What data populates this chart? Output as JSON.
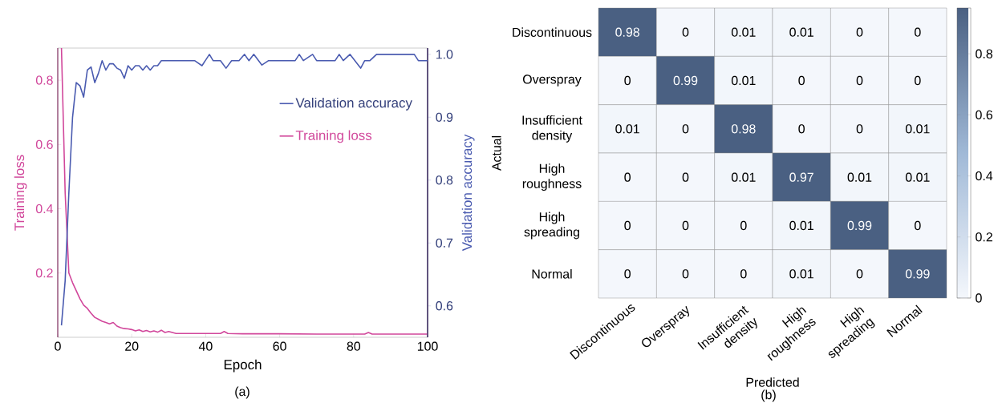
{
  "chart_data": [
    {
      "type": "line",
      "xlabel": "Epoch",
      "ylabel": "Training loss",
      "y2label": "Validation accuracy",
      "xlim": [
        0,
        100
      ],
      "xticks": [
        0,
        20,
        40,
        60,
        80,
        100
      ],
      "ylim": [
        0,
        0.9
      ],
      "yticks": [
        0.2,
        0.4,
        0.6,
        0.8
      ],
      "y2lim": [
        0.55,
        1.01
      ],
      "y2ticks": [
        0.6,
        0.7,
        0.8,
        0.9,
        {
          "value": 1.0,
          "label": "1.0"
        }
      ],
      "legend": "top right",
      "grid": false,
      "annotations": [
        "(a)"
      ],
      "series": [
        {
          "name": "Validation accuracy",
          "color": "#4a5bb0",
          "axis": "y2",
          "x": [
            1,
            2,
            3,
            4,
            5,
            6,
            7,
            8,
            9,
            10,
            11,
            12,
            13,
            14,
            15,
            16,
            17,
            18,
            19,
            20,
            21,
            22,
            23,
            24,
            25,
            26,
            27,
            28,
            37,
            39,
            41,
            42,
            44,
            45.5,
            47,
            49,
            50.5,
            51.7,
            53,
            55.2,
            57,
            64.2,
            65.3,
            66.4,
            68.9,
            70,
            75,
            76.1,
            77.2,
            79,
            81.9,
            83,
            84.4,
            86.2,
            96.4,
            97.5,
            100
          ],
          "values": [
            0.569,
            0.64,
            0.78,
            0.9,
            0.955,
            0.95,
            0.932,
            0.975,
            0.98,
            0.955,
            0.97,
            0.99,
            0.975,
            0.985,
            0.985,
            0.978,
            0.975,
            0.962,
            0.982,
            0.975,
            0.982,
            0.982,
            0.975,
            0.982,
            0.975,
            0.982,
            0.982,
            0.99,
            0.99,
            0.982,
            1.0,
            0.99,
            0.99,
            0.978,
            0.99,
            0.99,
            1.0,
            0.99,
            1.0,
            0.983,
            0.99,
            0.99,
            1.0,
            0.99,
            1.0,
            0.99,
            0.99,
            1.0,
            0.99,
            1.0,
            0.978,
            0.99,
            0.99,
            1.0,
            1.0,
            0.99,
            0.99
          ]
        },
        {
          "name": "Training loss",
          "color": "#d1479b",
          "axis": "y",
          "x": [
            1,
            2,
            3,
            4,
            5,
            6,
            7,
            8,
            9,
            10,
            11,
            12,
            13,
            14,
            15,
            16,
            17,
            18,
            19,
            20,
            21,
            22,
            23,
            24,
            25,
            26,
            27,
            28,
            29,
            30,
            32,
            35,
            40,
            44,
            45,
            46,
            50,
            60,
            70,
            80,
            83,
            84,
            85,
            90,
            100
          ],
          "values": [
            0.9,
            0.45,
            0.2,
            0.17,
            0.145,
            0.12,
            0.1,
            0.09,
            0.075,
            0.062,
            0.056,
            0.05,
            0.046,
            0.042,
            0.046,
            0.035,
            0.03,
            0.027,
            0.026,
            0.024,
            0.02,
            0.023,
            0.018,
            0.021,
            0.017,
            0.02,
            0.016,
            0.022,
            0.015,
            0.018,
            0.012,
            0.012,
            0.012,
            0.012,
            0.018,
            0.012,
            0.011,
            0.011,
            0.01,
            0.01,
            0.01,
            0.015,
            0.01,
            0.01,
            0.01
          ]
        }
      ]
    },
    {
      "type": "heatmap",
      "xlabel": "Predicted",
      "ylabel": "Actual",
      "annotations": [
        "(b)"
      ],
      "data_labels": true,
      "categories": [
        "Discontinuous",
        "Overspray",
        "Insufficient density",
        "High roughness",
        "High spreading",
        "Normal"
      ],
      "y_categories": [
        "Discontinuous",
        "Overspray",
        "Insufficient density",
        "High roughness",
        "High spreading",
        "Normal"
      ],
      "cells": [
        [
          0.98,
          0,
          0.01,
          0.01,
          0,
          0
        ],
        [
          0,
          0.99,
          0.01,
          0,
          0,
          0
        ],
        [
          0.01,
          0,
          0.98,
          0,
          0,
          0.01
        ],
        [
          0,
          0,
          0.01,
          0.97,
          0.01,
          0.01
        ],
        [
          0,
          0,
          0,
          0.01,
          0.99,
          0
        ],
        [
          0,
          0,
          0,
          0.01,
          0,
          0.99
        ]
      ],
      "clim": [
        0,
        0.95
      ],
      "cticks": [
        0,
        0.2,
        0.4,
        0.6,
        0.8
      ]
    }
  ]
}
